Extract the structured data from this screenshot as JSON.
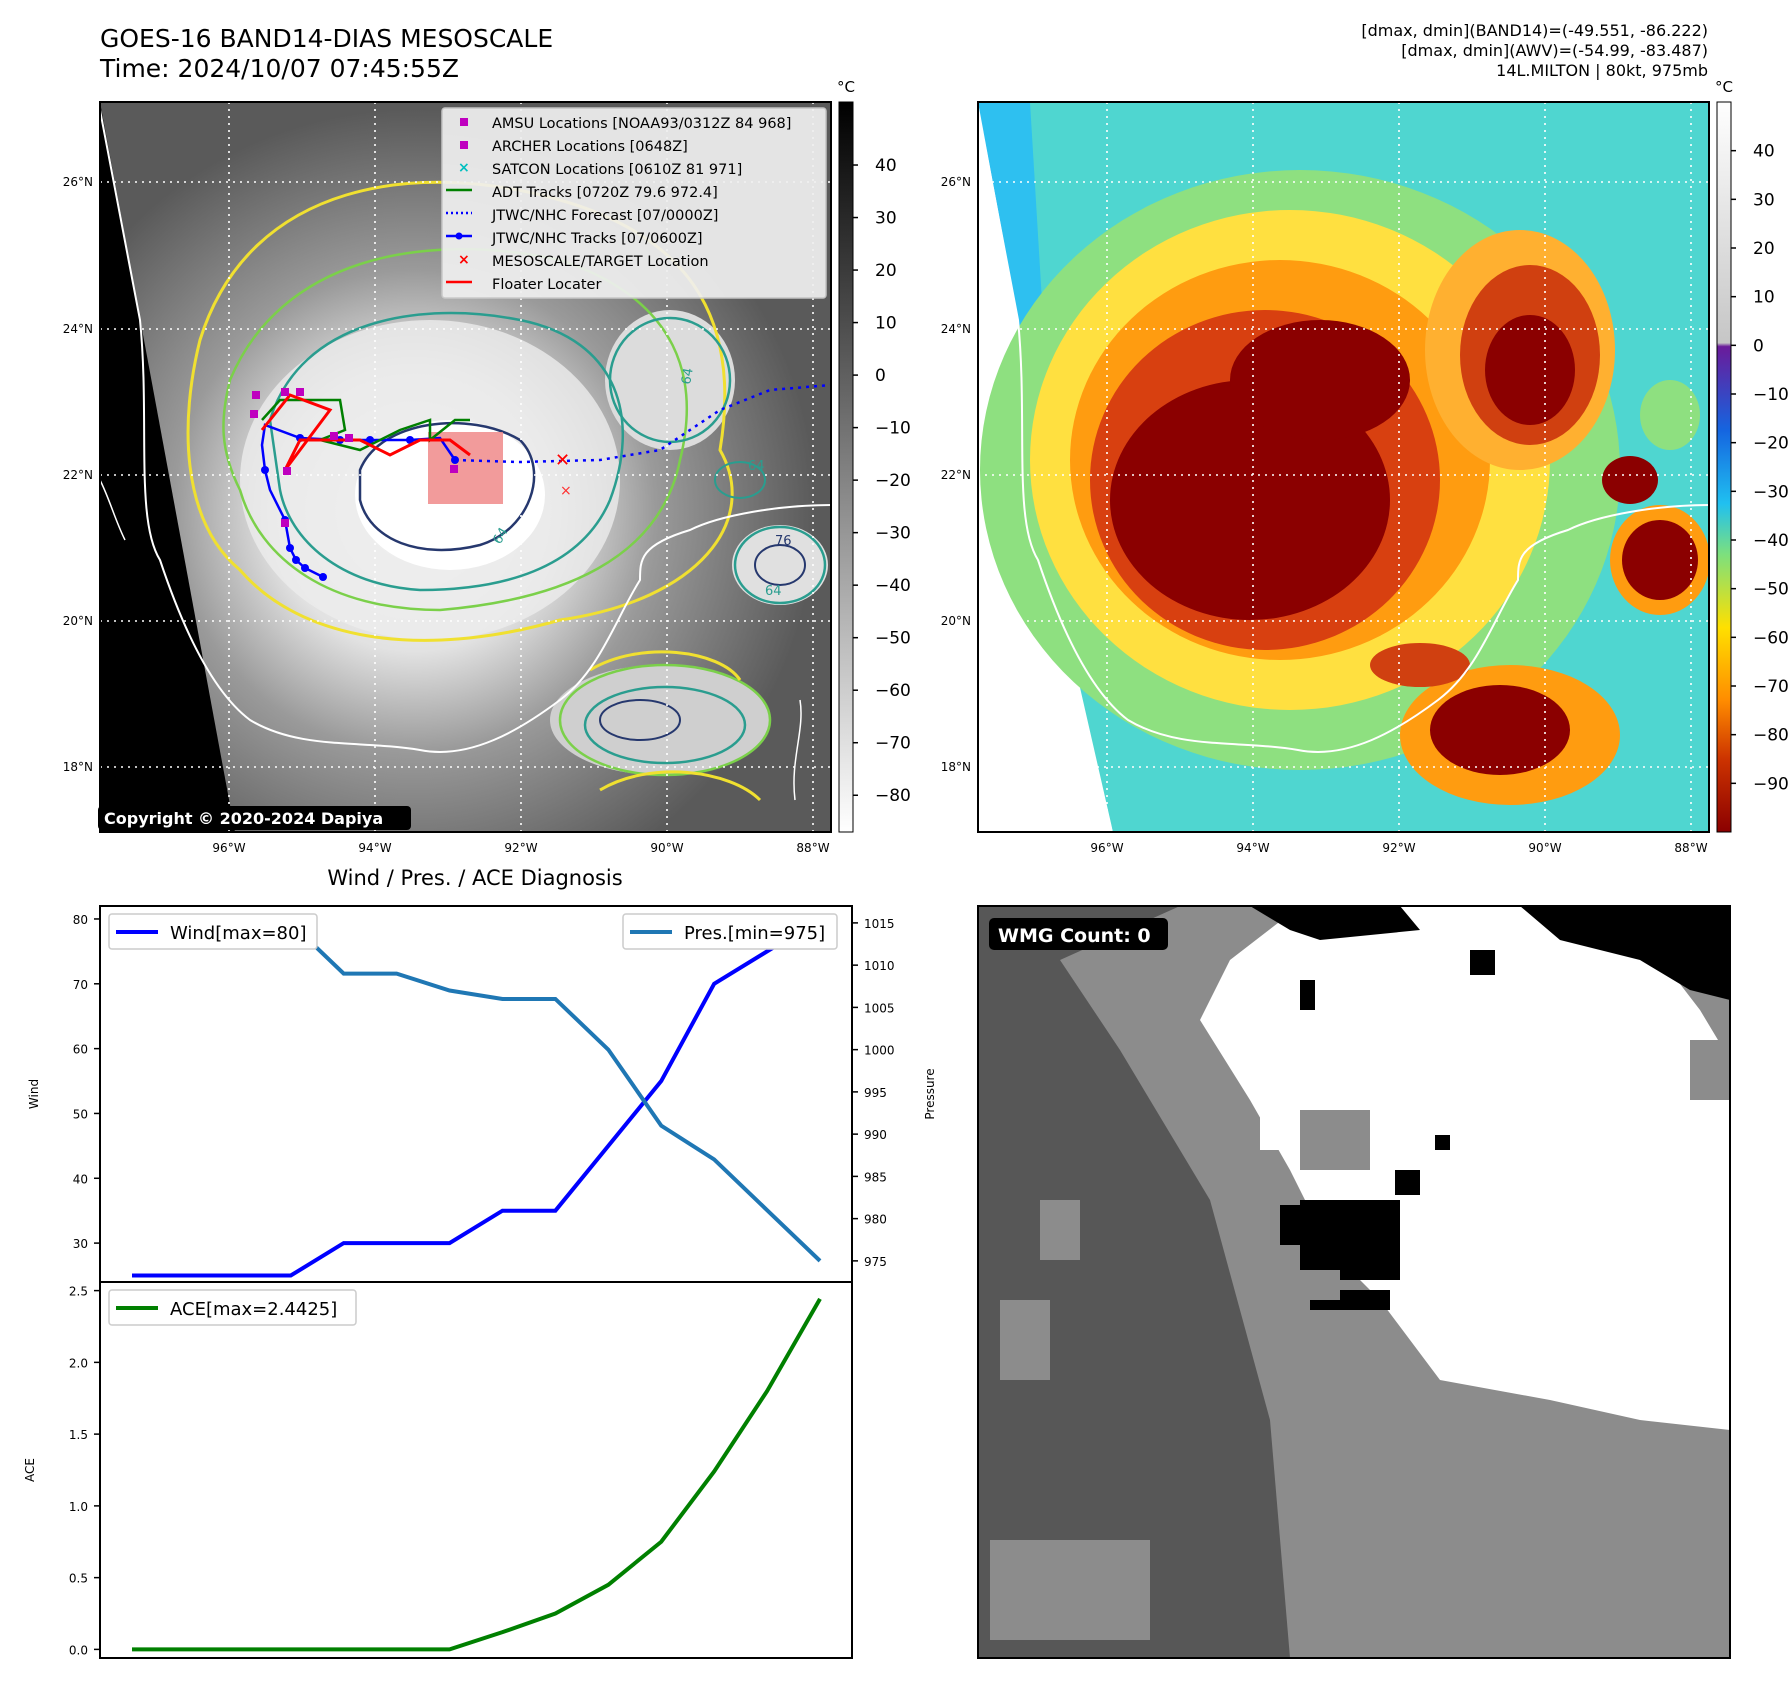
{
  "header": {
    "title": "GOES-16 BAND14-DIAS MESOSCALE",
    "time": "Time: 2024/10/07 07:45:55Z",
    "info_lines": [
      "[dmax, dmin](BAND14)=(-49.551, -86.222)",
      "[dmax, dmin](AWV)=(-54.99, -83.487)",
      "14L.MILTON | 80kt, 975mb"
    ]
  },
  "map_ir": {
    "lon_labels": [
      "96°W",
      "94°W",
      "92°W",
      "90°W",
      "88°W"
    ],
    "lat_labels": [
      "26°N",
      "24°N",
      "22°N",
      "20°N",
      "18°N"
    ],
    "colorbar_unit": "°C",
    "colorbar_ticks": [
      "40",
      "30",
      "20",
      "10",
      "0",
      "−10",
      "−20",
      "−30",
      "−40",
      "−50",
      "−60",
      "−70",
      "−80"
    ],
    "copyright": "Copyright © 2020-2024 Dapiya",
    "contour_labels": [
      "64",
      "64",
      "64",
      "76",
      "64"
    ],
    "legend": [
      {
        "label": "AMSU Locations [NOAA93/0312Z 84 968]",
        "marker": "square",
        "color": "#bf00bf"
      },
      {
        "label": "ARCHER Locations [0648Z]",
        "marker": "square",
        "color": "#bf00bf"
      },
      {
        "label": "SATCON Locations [0610Z 81 971]",
        "marker": "x",
        "color": "#00bfbf"
      },
      {
        "label": "ADT Tracks [0720Z 79.6 972.4]",
        "marker": "line",
        "color": "#008000"
      },
      {
        "label": "JTWC/NHC Forecast [07/0000Z]",
        "marker": "dotted",
        "color": "#0000ff"
      },
      {
        "label": "JTWC/NHC Tracks [07/0600Z]",
        "marker": "line-dot",
        "color": "#0000ff"
      },
      {
        "label": "MESOSCALE/TARGET Location",
        "marker": "x",
        "color": "#ff0000"
      },
      {
        "label": "Floater Locater",
        "marker": "line",
        "color": "#ff0000"
      }
    ]
  },
  "map_awv": {
    "lon_labels": [
      "96°W",
      "94°W",
      "92°W",
      "90°W",
      "88°W"
    ],
    "lat_labels": [
      "26°N",
      "24°N",
      "22°N",
      "20°N",
      "18°N"
    ],
    "colorbar_unit": "°C",
    "colorbar_ticks": [
      "40",
      "30",
      "20",
      "10",
      "0",
      "−10",
      "−20",
      "−30",
      "−40",
      "−50",
      "−60",
      "−70",
      "−80",
      "−90"
    ]
  },
  "wmg": {
    "label": "WMG Count: 0"
  },
  "chart_data": [
    {
      "type": "line",
      "title": "Wind / Pres. / ACE Diagnosis",
      "ylabel": "Wind",
      "ylabel_right": "Pressure",
      "ylim": [
        24,
        82
      ],
      "ylim_right": [
        972.5,
        1017
      ],
      "yticks": [
        "80",
        "70",
        "60",
        "50",
        "40",
        "30"
      ],
      "yticks_right": [
        "1015",
        "1010",
        "1005",
        "1000",
        "995",
        "990",
        "985",
        "980",
        "975"
      ],
      "series": [
        {
          "name": "Wind[max=80]",
          "axis": "left",
          "color": "#0000ff",
          "values": [
            25,
            25,
            25,
            25,
            30,
            30,
            30,
            35,
            35,
            45,
            55,
            70,
            75,
            80
          ]
        },
        {
          "name": "Pres.[min=975]",
          "axis": "right",
          "color": "#1f77b4",
          "values": [
            1015,
            1015,
            1015,
            1015,
            1009,
            1009,
            1007,
            1006,
            1006,
            1000,
            991,
            987,
            981,
            975
          ]
        }
      ]
    },
    {
      "type": "line",
      "ylabel": "ACE",
      "ylim": [
        -0.06,
        2.56
      ],
      "yticks": [
        "2.5",
        "2.0",
        "1.5",
        "1.0",
        "0.5",
        "0.0"
      ],
      "series": [
        {
          "name": "ACE[max=2.4425]",
          "color": "#008000",
          "values": [
            0,
            0,
            0,
            0,
            0,
            0,
            0,
            0.12,
            0.25,
            0.45,
            0.75,
            1.24,
            1.8,
            2.4425
          ]
        }
      ]
    }
  ]
}
